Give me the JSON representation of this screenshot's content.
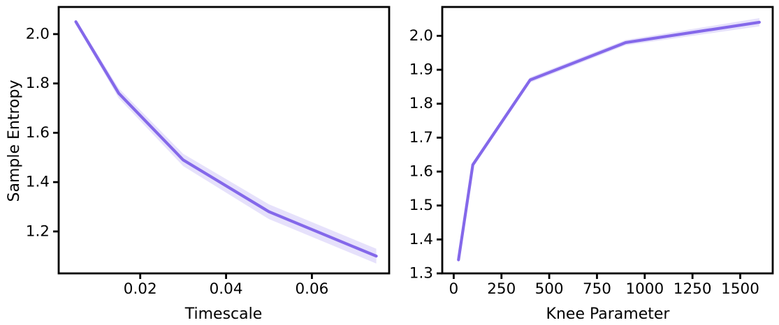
{
  "figure": {
    "background": "#ffffff",
    "axis_color": "#000000"
  },
  "chart_data": [
    {
      "type": "line",
      "title": "",
      "xlabel": "Timescale",
      "ylabel": "Sample Entropy",
      "x": [
        0.005,
        0.015,
        0.03,
        0.05,
        0.075
      ],
      "y": [
        2.05,
        1.76,
        1.49,
        1.28,
        1.1
      ],
      "band_upper": [
        2.06,
        1.78,
        1.515,
        1.31,
        1.13
      ],
      "band_lower": [
        2.04,
        1.74,
        1.465,
        1.25,
        1.07
      ],
      "xlim": [
        0.001,
        0.078
      ],
      "ylim": [
        1.03,
        2.11
      ],
      "xticks": [
        0.02,
        0.04,
        0.06
      ],
      "xtick_labels": [
        "0.02",
        "0.04",
        "0.06"
      ],
      "yticks": [
        1.2,
        1.4,
        1.6,
        1.8,
        2.0
      ],
      "ytick_labels": [
        "1.2",
        "1.4",
        "1.6",
        "1.8",
        "2.0"
      ],
      "line_color": "#8468ea",
      "band_opacity": 0.2,
      "axis_color": "#000000",
      "grid": false,
      "legend": null
    },
    {
      "type": "line",
      "title": "",
      "xlabel": "Knee Parameter",
      "ylabel": "",
      "x": [
        25,
        100,
        400,
        900,
        1600
      ],
      "y": [
        1.34,
        1.62,
        1.87,
        1.98,
        2.04
      ],
      "band_upper": [
        1.348,
        1.628,
        1.878,
        1.988,
        2.052
      ],
      "band_lower": [
        1.332,
        1.612,
        1.862,
        1.972,
        2.028
      ],
      "xlim": [
        -60,
        1670
      ],
      "ylim": [
        1.3,
        2.085
      ],
      "xticks": [
        0,
        250,
        500,
        750,
        1000,
        1250,
        1500
      ],
      "xtick_labels": [
        "0",
        "250",
        "500",
        "750",
        "1000",
        "1250",
        "1500"
      ],
      "yticks": [
        1.3,
        1.4,
        1.5,
        1.6,
        1.7,
        1.8,
        1.9,
        2.0
      ],
      "ytick_labels": [
        "1.3",
        "1.4",
        "1.5",
        "1.6",
        "1.7",
        "1.8",
        "1.9",
        "2.0"
      ],
      "line_color": "#8468ea",
      "band_opacity": 0.2,
      "axis_color": "#000000",
      "grid": false,
      "legend": null
    }
  ]
}
